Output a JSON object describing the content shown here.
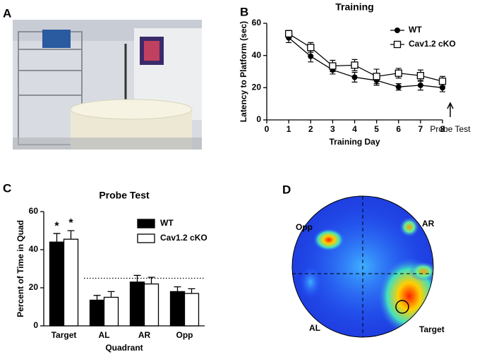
{
  "panel_labels": [
    "A",
    "B",
    "C",
    "D"
  ],
  "chart_data": [
    {
      "type": "line",
      "title": "Training",
      "xlabel": "Training Day",
      "ylabel": "Latency to Platform (sec)",
      "x": [
        1,
        2,
        3,
        4,
        5,
        6,
        7,
        8
      ],
      "xlim": [
        0,
        8
      ],
      "xticks": [
        0,
        1,
        2,
        3,
        4,
        5,
        6,
        7,
        8
      ],
      "ylim": [
        0,
        60
      ],
      "yticks": [
        0,
        20,
        40,
        60
      ],
      "legend": "upper right",
      "annotation": "Probe Test",
      "series": [
        {
          "name": "WT",
          "color": "#000000",
          "marker": "filled-circle",
          "values": [
            51,
            39.5,
            31,
            26.5,
            24.5,
            20.5,
            21.5,
            20
          ],
          "errors": [
            3,
            3.5,
            2.5,
            3,
            3,
            2,
            3,
            2.5
          ]
        },
        {
          "name": "Cav1.2 cKO",
          "color": "#000000",
          "marker": "open-square",
          "values": [
            53.5,
            45,
            33.5,
            34,
            27,
            29,
            27.5,
            24
          ],
          "errors": [
            2,
            3,
            3.5,
            3.5,
            4.5,
            3,
            3.5,
            3
          ]
        }
      ]
    },
    {
      "type": "bar",
      "title": "Probe Test",
      "xlabel": "Quadrant",
      "ylabel": "Percent of Time in Quad",
      "categories": [
        "Target",
        "AL",
        "AR",
        "Opp"
      ],
      "ylim": [
        0,
        60
      ],
      "yticks": [
        0,
        20,
        40,
        60
      ],
      "reference_line": 25,
      "legend": "upper right",
      "series": [
        {
          "name": "WT",
          "color": "#000000",
          "values": [
            44,
            13.5,
            23,
            18
          ],
          "errors": [
            4.5,
            2.5,
            3.5,
            2.5
          ],
          "significance": [
            "*",
            null,
            null,
            null
          ]
        },
        {
          "name": "Cav1.2 cKO",
          "color": "#ffffff",
          "values": [
            45.5,
            15,
            22,
            17
          ],
          "errors": [
            4.5,
            3,
            3.5,
            2.5
          ],
          "significance": [
            "*",
            null,
            null,
            null
          ]
        }
      ]
    }
  ],
  "heatmap": {
    "labels": [
      "Opp",
      "AR",
      "AL",
      "Target"
    ]
  }
}
